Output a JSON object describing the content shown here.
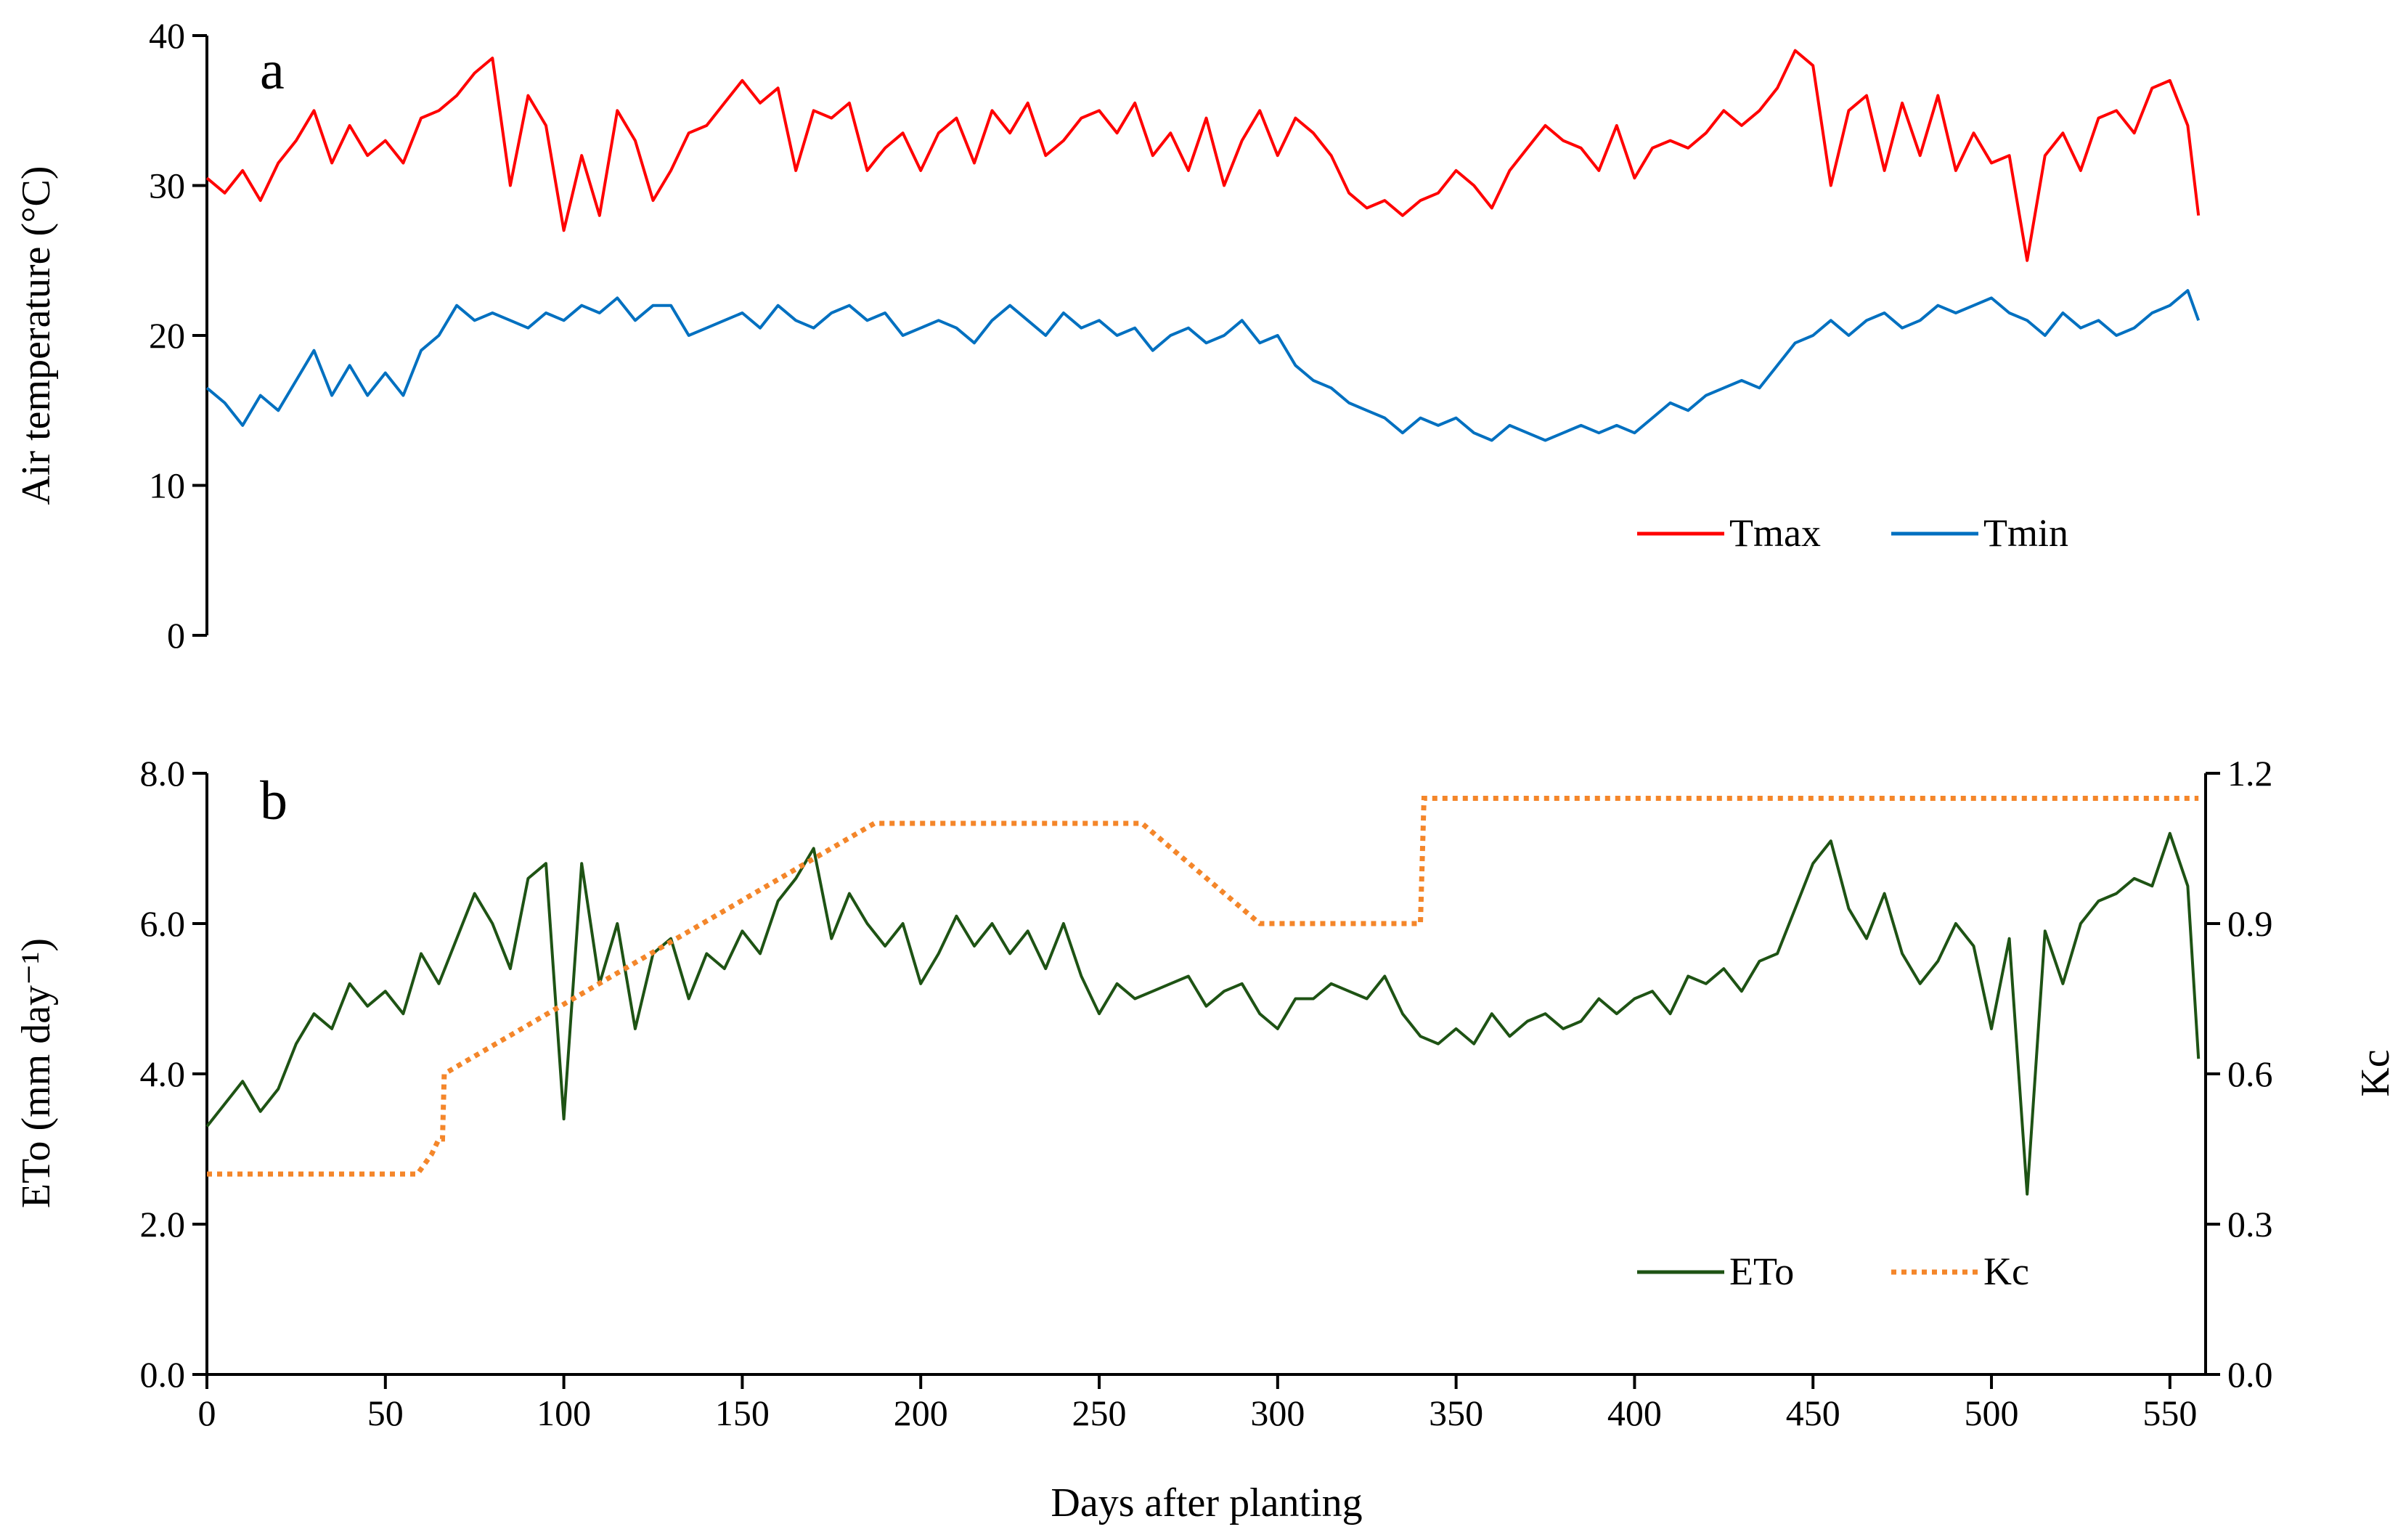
{
  "chart_data": [
    {
      "type": "line",
      "panel": "a",
      "title": "",
      "xlabel": "",
      "ylabel": "Air temperature (°C)",
      "xlim": [
        0,
        560
      ],
      "ylim": [
        0,
        40
      ],
      "y_ticks": [
        "0",
        "10",
        "20",
        "30",
        "40"
      ],
      "x_ticks": [],
      "legend_position": "bottom-right",
      "grid": false,
      "series": [
        {
          "name": "Tmax",
          "color": "#ff0000",
          "x": [
            0,
            5,
            10,
            15,
            20,
            25,
            30,
            35,
            40,
            45,
            50,
            55,
            60,
            65,
            70,
            75,
            80,
            85,
            90,
            95,
            100,
            105,
            110,
            115,
            120,
            125,
            130,
            135,
            140,
            145,
            150,
            155,
            160,
            165,
            170,
            175,
            180,
            185,
            190,
            195,
            200,
            205,
            210,
            215,
            220,
            225,
            230,
            235,
            240,
            245,
            250,
            255,
            260,
            265,
            270,
            275,
            280,
            285,
            290,
            295,
            300,
            305,
            310,
            315,
            320,
            325,
            330,
            335,
            340,
            345,
            350,
            355,
            360,
            365,
            370,
            375,
            380,
            385,
            390,
            395,
            400,
            405,
            410,
            415,
            420,
            425,
            430,
            435,
            440,
            445,
            450,
            455,
            460,
            465,
            470,
            475,
            480,
            485,
            490,
            495,
            500,
            505,
            510,
            515,
            520,
            525,
            530,
            535,
            540,
            545,
            550,
            555,
            558
          ],
          "values": [
            30.5,
            29.5,
            31,
            29,
            31.5,
            33,
            35,
            31.5,
            34,
            32,
            33,
            31.5,
            34.5,
            35,
            36,
            37.5,
            38.5,
            30,
            36,
            34,
            27,
            32,
            28,
            35,
            33,
            29,
            31,
            33.5,
            34,
            35.5,
            37,
            35.5,
            36.5,
            31,
            35,
            34.5,
            35.5,
            31,
            32.5,
            33.5,
            31,
            33.5,
            34.5,
            31.5,
            35,
            33.5,
            35.5,
            32,
            33,
            34.5,
            35,
            33.5,
            35.5,
            32,
            33.5,
            31,
            34.5,
            30,
            33,
            35,
            32,
            34.5,
            33.5,
            32,
            29.5,
            28.5,
            29,
            28,
            29,
            29.5,
            31,
            30,
            28.5,
            31,
            32.5,
            34,
            33,
            32.5,
            31,
            34,
            30.5,
            32.5,
            33,
            32.5,
            33.5,
            35,
            34,
            35,
            36.5,
            39,
            38,
            30,
            35,
            36,
            31,
            35.5,
            32,
            36,
            31,
            33.5,
            31.5,
            32,
            25,
            32,
            33.5,
            31,
            34.5,
            35,
            33.5,
            36.5,
            37,
            34,
            28
          ]
        },
        {
          "name": "Tmin",
          "color": "#0070c0",
          "x": [
            0,
            5,
            10,
            15,
            20,
            25,
            30,
            35,
            40,
            45,
            50,
            55,
            60,
            65,
            70,
            75,
            80,
            85,
            90,
            95,
            100,
            105,
            110,
            115,
            120,
            125,
            130,
            135,
            140,
            145,
            150,
            155,
            160,
            165,
            170,
            175,
            180,
            185,
            190,
            195,
            200,
            205,
            210,
            215,
            220,
            225,
            230,
            235,
            240,
            245,
            250,
            255,
            260,
            265,
            270,
            275,
            280,
            285,
            290,
            295,
            300,
            305,
            310,
            315,
            320,
            325,
            330,
            335,
            340,
            345,
            350,
            355,
            360,
            365,
            370,
            375,
            380,
            385,
            390,
            395,
            400,
            405,
            410,
            415,
            420,
            425,
            430,
            435,
            440,
            445,
            450,
            455,
            460,
            465,
            470,
            475,
            480,
            485,
            490,
            495,
            500,
            505,
            510,
            515,
            520,
            525,
            530,
            535,
            540,
            545,
            550,
            555,
            558
          ],
          "values": [
            16.5,
            15.5,
            14,
            16,
            15,
            17,
            19,
            16,
            18,
            16,
            17.5,
            16,
            19,
            20,
            22,
            21,
            21.5,
            21,
            20.5,
            21.5,
            21,
            22,
            21.5,
            22.5,
            21,
            22,
            22,
            20,
            20.5,
            21,
            21.5,
            20.5,
            22,
            21,
            20.5,
            21.5,
            22,
            21,
            21.5,
            20,
            20.5,
            21,
            20.5,
            19.5,
            21,
            22,
            21,
            20,
            21.5,
            20.5,
            21,
            20,
            20.5,
            19,
            20,
            20.5,
            19.5,
            20,
            21,
            19.5,
            20,
            18,
            17,
            16.5,
            15.5,
            15,
            14.5,
            13.5,
            14.5,
            14,
            14.5,
            13.5,
            13,
            14,
            13.5,
            13,
            13.5,
            14,
            13.5,
            14,
            13.5,
            14.5,
            15.5,
            15,
            16,
            16.5,
            17,
            16.5,
            18,
            19.5,
            20,
            21,
            20,
            21,
            21.5,
            20.5,
            21,
            22,
            21.5,
            22,
            22.5,
            21.5,
            21,
            20,
            21.5,
            20.5,
            21,
            20,
            20.5,
            21.5,
            22,
            23,
            21
          ]
        }
      ]
    },
    {
      "type": "line",
      "panel": "b",
      "title": "",
      "xlabel": "Days after planting",
      "ylabel": "ETo (mm day⁻¹)",
      "ylabel_right": "Kc",
      "xlim": [
        0,
        560
      ],
      "ylim": [
        0,
        8
      ],
      "ylim_right": [
        0,
        1.2
      ],
      "x_ticks": [
        "0",
        "50",
        "100",
        "150",
        "200",
        "250",
        "300",
        "350",
        "400",
        "450",
        "500",
        "550"
      ],
      "y_ticks": [
        "0.0",
        "2.0",
        "4.0",
        "6.0",
        "8.0"
      ],
      "y_ticks_right": [
        "0.0",
        "0.3",
        "0.6",
        "0.9",
        "1.2"
      ],
      "legend_position": "bottom-right",
      "grid": false,
      "series": [
        {
          "name": "ETo",
          "axis": "left",
          "color": "#1e5314",
          "style": "solid",
          "x": [
            0,
            5,
            10,
            15,
            20,
            25,
            30,
            35,
            40,
            45,
            50,
            55,
            60,
            65,
            70,
            75,
            80,
            85,
            90,
            95,
            100,
            105,
            110,
            115,
            120,
            125,
            130,
            135,
            140,
            145,
            150,
            155,
            160,
            165,
            170,
            175,
            180,
            185,
            190,
            195,
            200,
            205,
            210,
            215,
            220,
            225,
            230,
            235,
            240,
            245,
            250,
            255,
            260,
            265,
            270,
            275,
            280,
            285,
            290,
            295,
            300,
            305,
            310,
            315,
            320,
            325,
            330,
            335,
            340,
            345,
            350,
            355,
            360,
            365,
            370,
            375,
            380,
            385,
            390,
            395,
            400,
            405,
            410,
            415,
            420,
            425,
            430,
            435,
            440,
            445,
            450,
            455,
            460,
            465,
            470,
            475,
            480,
            485,
            490,
            495,
            500,
            505,
            510,
            515,
            520,
            525,
            530,
            535,
            540,
            545,
            550,
            555,
            558
          ],
          "values": [
            3.3,
            3.6,
            3.9,
            3.5,
            3.8,
            4.4,
            4.8,
            4.6,
            5.2,
            4.9,
            5.1,
            4.8,
            5.6,
            5.2,
            5.8,
            6.4,
            6.0,
            5.4,
            6.6,
            6.8,
            3.4,
            6.8,
            5.2,
            6.0,
            4.6,
            5.6,
            5.8,
            5.0,
            5.6,
            5.4,
            5.9,
            5.6,
            6.3,
            6.6,
            7.0,
            5.8,
            6.4,
            6.0,
            5.7,
            6.0,
            5.2,
            5.6,
            6.1,
            5.7,
            6.0,
            5.6,
            5.9,
            5.4,
            6.0,
            5.3,
            4.8,
            5.2,
            5.0,
            5.1,
            5.2,
            5.3,
            4.9,
            5.1,
            5.2,
            4.8,
            4.6,
            5.0,
            5.0,
            5.2,
            5.1,
            5.0,
            5.3,
            4.8,
            4.5,
            4.4,
            4.6,
            4.4,
            4.8,
            4.5,
            4.7,
            4.8,
            4.6,
            4.7,
            5.0,
            4.8,
            5.0,
            5.1,
            4.8,
            5.3,
            5.2,
            5.4,
            5.1,
            5.5,
            5.6,
            6.2,
            6.8,
            7.1,
            6.2,
            5.8,
            6.4,
            5.6,
            5.2,
            5.5,
            6.0,
            5.7,
            4.6,
            5.8,
            2.4,
            5.9,
            5.2,
            6.0,
            6.3,
            6.4,
            6.6,
            6.5,
            7.2,
            6.5,
            4.2
          ]
        },
        {
          "name": "Kc",
          "axis": "right",
          "color": "#f4862a",
          "style": "dotted",
          "x": [
            0,
            59,
            63,
            65,
            66,
            66.5,
            187,
            262,
            295,
            339,
            340,
            341,
            558
          ],
          "values": [
            0.4,
            0.4,
            0.44,
            0.47,
            0.47,
            0.6,
            1.1,
            1.1,
            0.9,
            0.9,
            0.9,
            1.15,
            1.15
          ]
        }
      ]
    }
  ]
}
